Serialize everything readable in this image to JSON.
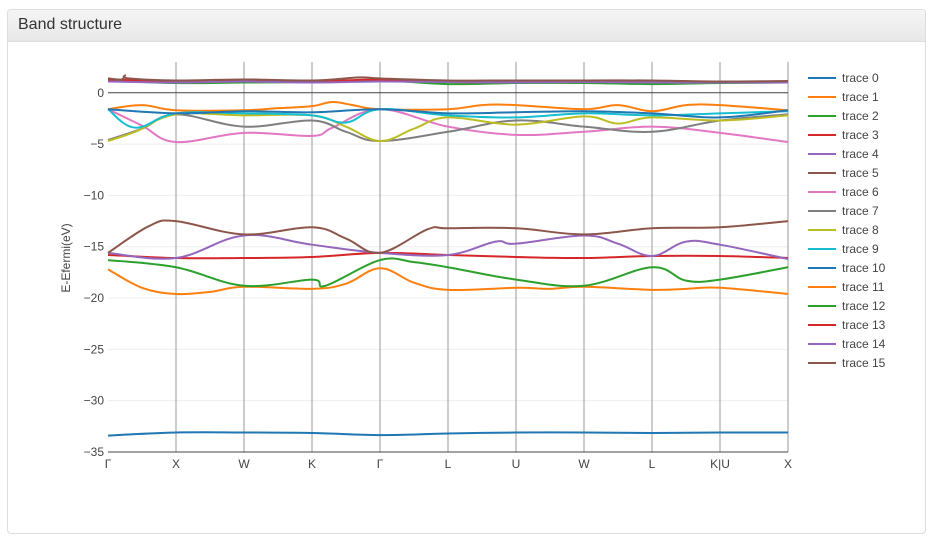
{
  "panel": {
    "title": "Band structure"
  },
  "chart_data": {
    "type": "line",
    "title": "",
    "xlabel": "",
    "ylabel": "E-Efermi(eV)",
    "ylim": [
      -35,
      3
    ],
    "xlim": [
      0,
      10
    ],
    "yticks": [
      0,
      -5,
      -10,
      -15,
      -20,
      -25,
      -30,
      -35
    ],
    "ytick_labels": [
      "0",
      "−5",
      "−10",
      "−15",
      "−20",
      "−25",
      "−30",
      "−35"
    ],
    "kpoints": [
      {
        "label": "Γ",
        "x": 0
      },
      {
        "label": "X",
        "x": 1
      },
      {
        "label": "W",
        "x": 2
      },
      {
        "label": "K",
        "x": 3
      },
      {
        "label": "Γ",
        "x": 4
      },
      {
        "label": "L",
        "x": 5
      },
      {
        "label": "U",
        "x": 6
      },
      {
        "label": "W",
        "x": 7
      },
      {
        "label": "L",
        "x": 8
      },
      {
        "label": "K|U",
        "x": 9
      },
      {
        "label": "X",
        "x": 10
      }
    ],
    "series": [
      {
        "name": "trace 0",
        "color": "#1f77b4",
        "x": [
          0,
          1,
          2,
          3,
          4,
          5,
          6,
          7,
          8,
          9,
          10
        ],
        "y": [
          -33.4,
          -33.1,
          -33.1,
          -33.15,
          -33.35,
          -33.2,
          -33.1,
          -33.1,
          -33.15,
          -33.1,
          -33.1
        ]
      },
      {
        "name": "trace 1",
        "color": "#ff7f0e",
        "x": [
          0,
          0.5,
          1,
          2,
          2.5,
          3,
          3.3,
          3.6,
          4,
          5,
          5.5,
          6,
          7,
          7.5,
          8,
          8.5,
          9,
          10
        ],
        "y": [
          -1.6,
          -1.2,
          -1.7,
          -1.7,
          -1.5,
          -1.3,
          -0.9,
          -1.2,
          -1.6,
          -1.6,
          -1.2,
          -1.2,
          -1.6,
          -1.2,
          -1.8,
          -1.2,
          -1.2,
          -1.7
        ]
      },
      {
        "name": "trace 2",
        "color": "#2ca02c",
        "x": [
          0,
          1,
          2,
          3,
          4,
          5,
          6,
          7,
          8,
          9,
          10
        ],
        "y": [
          1.2,
          0.95,
          1.0,
          1.05,
          1.2,
          0.85,
          0.95,
          0.95,
          0.85,
          0.95,
          1.0
        ]
      },
      {
        "name": "trace 3",
        "color": "#d62728",
        "x": [
          0,
          1,
          2,
          3,
          4,
          5,
          6,
          7,
          8,
          9,
          10
        ],
        "y": [
          1.3,
          1.1,
          1.15,
          1.1,
          1.3,
          1.05,
          1.05,
          1.1,
          1.05,
          1.05,
          1.05
        ]
      },
      {
        "name": "trace 4",
        "color": "#9467bd",
        "x": [
          0,
          1,
          2,
          3,
          4,
          5,
          6,
          7,
          8,
          9,
          10
        ],
        "y": [
          1.1,
          1.0,
          1.1,
          1.0,
          1.1,
          1.05,
          1.0,
          1.05,
          1.0,
          1.0,
          1.0
        ]
      },
      {
        "name": "trace 5",
        "color": "#8c564b",
        "x": [
          0,
          0.2,
          0.25,
          0.3,
          1,
          2,
          3,
          3.7,
          4,
          5,
          6,
          7,
          8,
          9,
          10
        ],
        "y": [
          1.4,
          1.3,
          1.7,
          1.4,
          1.2,
          1.3,
          1.2,
          1.5,
          1.4,
          1.2,
          1.2,
          1.2,
          1.2,
          1.1,
          1.15
        ]
      },
      {
        "name": "trace 6",
        "color": "#e377c2",
        "x": [
          0,
          0.5,
          1,
          2,
          3,
          3.3,
          4,
          5,
          6,
          7,
          8,
          9,
          10
        ],
        "y": [
          -1.6,
          -3.2,
          -4.8,
          -3.9,
          -4.2,
          -3.4,
          -1.6,
          -3.3,
          -4.1,
          -3.8,
          -3.3,
          -3.9,
          -4.8
        ]
      },
      {
        "name": "trace 7",
        "color": "#7f7f7f",
        "x": [
          0,
          0.5,
          1,
          2,
          3,
          3.5,
          4,
          5,
          6,
          7,
          8,
          9,
          10
        ],
        "y": [
          -4.6,
          -3.5,
          -2.1,
          -3.3,
          -2.7,
          -3.8,
          -4.7,
          -3.8,
          -2.7,
          -3.3,
          -3.8,
          -2.7,
          -2.1
        ]
      },
      {
        "name": "trace 8",
        "color": "#bcbd22",
        "x": [
          0,
          0.4,
          1,
          2,
          3,
          3.5,
          4,
          4.5,
          5,
          6,
          7,
          7.5,
          8,
          9,
          10
        ],
        "y": [
          -4.7,
          -3.8,
          -2.1,
          -2.2,
          -2.2,
          -3.3,
          -4.7,
          -3.5,
          -2.4,
          -3.1,
          -2.3,
          -3.0,
          -2.4,
          -2.7,
          -2.2
        ]
      },
      {
        "name": "trace 9",
        "color": "#17becf",
        "x": [
          0,
          0.4,
          1,
          2,
          3,
          3.5,
          4,
          5,
          6,
          7,
          8,
          9,
          10
        ],
        "y": [
          -1.6,
          -3.4,
          -2.0,
          -2.0,
          -2.2,
          -2.9,
          -1.6,
          -2.2,
          -2.4,
          -2.0,
          -2.2,
          -2.0,
          -1.8
        ]
      },
      {
        "name": "trace 10",
        "color": "#1f77b4",
        "x": [
          0,
          1,
          2,
          3,
          4,
          5,
          6,
          7,
          8,
          9,
          10
        ],
        "y": [
          -1.6,
          -2.0,
          -1.8,
          -1.9,
          -1.6,
          -2.0,
          -1.9,
          -1.8,
          -2.0,
          -2.4,
          -1.7
        ]
      },
      {
        "name": "trace 11",
        "color": "#ff7f0e",
        "x": [
          0,
          0.5,
          1,
          1.5,
          2,
          3,
          3.5,
          4,
          4.5,
          5,
          6,
          6.5,
          7,
          8,
          8.5,
          9,
          10
        ],
        "y": [
          -17.2,
          -19.0,
          -19.6,
          -19.4,
          -18.9,
          -19.1,
          -18.6,
          -17.1,
          -18.5,
          -19.2,
          -19.0,
          -19.1,
          -18.9,
          -19.2,
          -19.1,
          -19.0,
          -19.6
        ]
      },
      {
        "name": "trace 12",
        "color": "#2ca02c",
        "x": [
          0,
          1,
          2,
          3,
          3.2,
          4,
          4.5,
          5,
          6,
          7,
          8,
          8.5,
          9,
          10
        ],
        "y": [
          -16.3,
          -17.0,
          -18.8,
          -18.2,
          -18.8,
          -16.3,
          -16.5,
          -17.0,
          -18.2,
          -18.8,
          -17.0,
          -18.3,
          -18.2,
          -17.0
        ]
      },
      {
        "name": "trace 13",
        "color": "#d62728",
        "x": [
          0,
          1,
          2,
          3,
          4,
          5,
          6,
          7,
          8,
          9,
          10
        ],
        "y": [
          -15.8,
          -16.1,
          -16.1,
          -16.0,
          -15.6,
          -15.8,
          -16.0,
          -16.1,
          -15.9,
          -15.9,
          -16.1
        ]
      },
      {
        "name": "trace 14",
        "color": "#9467bd",
        "x": [
          0,
          1,
          2,
          3,
          4,
          5,
          5.7,
          6,
          7,
          7.5,
          8,
          8.5,
          9,
          10
        ],
        "y": [
          -15.6,
          -16.1,
          -13.9,
          -14.8,
          -15.6,
          -15.8,
          -14.5,
          -14.7,
          -13.9,
          -14.7,
          -15.9,
          -14.5,
          -14.8,
          -16.2
        ]
      },
      {
        "name": "trace 15",
        "color": "#8c564b",
        "x": [
          0,
          0.6,
          1,
          2,
          3,
          3.5,
          4,
          4.7,
          5,
          6,
          7,
          8,
          9,
          10
        ],
        "y": [
          -15.6,
          -13.0,
          -12.5,
          -13.8,
          -13.1,
          -14.2,
          -15.6,
          -13.3,
          -13.2,
          -13.2,
          -13.8,
          -13.2,
          -13.1,
          -12.5
        ]
      }
    ]
  }
}
